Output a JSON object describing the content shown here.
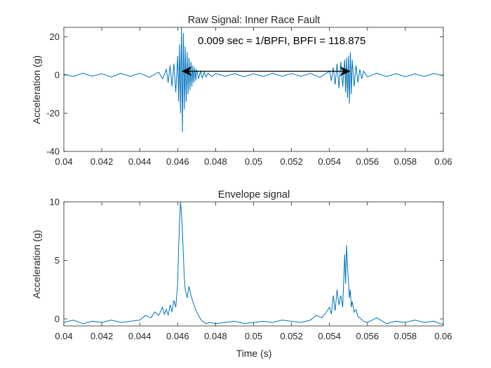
{
  "chart_data": [
    {
      "type": "line",
      "title": "Raw Signal: Inner Race Fault",
      "xlabel": "",
      "ylabel": "Acceleration (g)",
      "xlim": [
        0.04,
        0.06
      ],
      "ylim": [
        -40,
        25
      ],
      "xticks": [
        0.04,
        0.042,
        0.044,
        0.046,
        0.048,
        0.05,
        0.052,
        0.054,
        0.056,
        0.058,
        0.06
      ],
      "xticklabels": [
        "0.04",
        "0.042",
        "0.044",
        "0.046",
        "0.048",
        "0.05",
        "0.052",
        "0.054",
        "0.056",
        "0.058",
        "0.06"
      ],
      "yticks": [
        20,
        0,
        -20,
        -40
      ],
      "yticklabels": [
        "20",
        "0",
        "-20",
        "-40"
      ],
      "grid": false,
      "line_color": "#0072BD",
      "series": [
        {
          "x": [
            0.04,
            0.0405,
            0.041,
            0.0415,
            0.042,
            0.0425,
            0.043,
            0.0435,
            0.044,
            0.0445,
            0.045,
            0.0452,
            0.0454,
            0.0455,
            0.0456,
            0.0457,
            0.0458,
            0.0459,
            0.046,
            0.04605,
            0.0461,
            0.04615,
            0.0462,
            0.04625,
            0.0463,
            0.04635,
            0.0464,
            0.04645,
            0.0465,
            0.04655,
            0.0466,
            0.04665,
            0.0467,
            0.04675,
            0.0468,
            0.04685,
            0.0469,
            0.04695,
            0.047,
            0.0471,
            0.0472,
            0.0473,
            0.0474,
            0.0475,
            0.0476,
            0.0478,
            0.048,
            0.0485,
            0.049,
            0.0495,
            0.05,
            0.0505,
            0.051,
            0.0515,
            0.052,
            0.0525,
            0.053,
            0.0535,
            0.054,
            0.0541,
            0.0542,
            0.0543,
            0.0544,
            0.0545,
            0.0546,
            0.0547,
            0.0548,
            0.05485,
            0.0549,
            0.05495,
            0.055,
            0.05505,
            0.0551,
            0.05515,
            0.0552,
            0.0553,
            0.0554,
            0.0555,
            0.0556,
            0.0557,
            0.0558,
            0.056,
            0.0565,
            0.057,
            0.0575,
            0.058,
            0.0585,
            0.059,
            0.0595,
            0.06
          ],
          "y": [
            0.5,
            -0.8,
            1.0,
            -0.6,
            0.7,
            -1.0,
            0.9,
            -0.7,
            1.0,
            -1.2,
            1.5,
            -2,
            3,
            -4,
            5,
            -6,
            6,
            -9,
            10,
            -14,
            16,
            -20,
            25,
            -30,
            22,
            -18,
            15,
            -14,
            12,
            -10,
            9,
            -8,
            7,
            -6,
            5,
            -4,
            4,
            -3,
            3,
            -2,
            2,
            -1.5,
            1.5,
            -1,
            1,
            -0.8,
            0.8,
            -0.6,
            0.7,
            -0.9,
            0.6,
            -0.7,
            0.9,
            -0.6,
            0.8,
            -0.7,
            0.9,
            -1.2,
            2,
            -3,
            4,
            -5,
            6,
            -7,
            7,
            -6,
            8,
            -9,
            9,
            -12,
            10,
            -15,
            12,
            -10,
            8,
            -6,
            5,
            -4,
            3,
            -2,
            2,
            -1,
            1,
            -0.8,
            0.7,
            -0.9,
            0.6,
            -0.7,
            0.8,
            -0.3
          ]
        }
      ],
      "annotation": {
        "text": "0.009 sec ≈ 1/BPFI, BPFI = 118.875",
        "arrow_x": [
          0.0462,
          0.0551
        ],
        "arrow_y": 2
      }
    },
    {
      "type": "line",
      "title": "Envelope signal",
      "xlabel": "Time (s)",
      "ylabel": "Acceleration (g)",
      "xlim": [
        0.04,
        0.06
      ],
      "ylim": [
        -0.6,
        10
      ],
      "xticks": [
        0.04,
        0.042,
        0.044,
        0.046,
        0.048,
        0.05,
        0.052,
        0.054,
        0.056,
        0.058,
        0.06
      ],
      "xticklabels": [
        "0.04",
        "0.042",
        "0.044",
        "0.046",
        "0.048",
        "0.05",
        "0.052",
        "0.054",
        "0.056",
        "0.058",
        "0.06"
      ],
      "yticks": [
        10,
        5,
        0
      ],
      "yticklabels": [
        "10",
        "5",
        "0"
      ],
      "grid": false,
      "line_color": "#0072BD",
      "series": [
        {
          "x": [
            0.04,
            0.0405,
            0.041,
            0.0415,
            0.042,
            0.0425,
            0.043,
            0.0435,
            0.044,
            0.0443,
            0.0446,
            0.0448,
            0.045,
            0.0452,
            0.0453,
            0.0454,
            0.0455,
            0.0456,
            0.0457,
            0.0458,
            0.0459,
            0.046,
            0.04605,
            0.0461,
            0.04615,
            0.0462,
            0.04625,
            0.0463,
            0.04635,
            0.0464,
            0.0465,
            0.0466,
            0.0467,
            0.0468,
            0.0469,
            0.047,
            0.0471,
            0.0472,
            0.0473,
            0.0474,
            0.0475,
            0.0477,
            0.048,
            0.0485,
            0.049,
            0.0495,
            0.05,
            0.0505,
            0.051,
            0.0515,
            0.052,
            0.0525,
            0.053,
            0.0533,
            0.0536,
            0.0538,
            0.054,
            0.0541,
            0.0542,
            0.0543,
            0.0544,
            0.0545,
            0.0546,
            0.0547,
            0.0548,
            0.05485,
            0.0549,
            0.05495,
            0.055,
            0.05505,
            0.0551,
            0.05515,
            0.0552,
            0.0553,
            0.0554,
            0.0555,
            0.0556,
            0.0558,
            0.056,
            0.0565,
            0.057,
            0.0575,
            0.058,
            0.0585,
            0.059,
            0.0595,
            0.06
          ],
          "y": [
            -0.3,
            -0.1,
            -0.4,
            -0.2,
            -0.3,
            -0.1,
            -0.3,
            -0.2,
            -0.1,
            0.3,
            0.1,
            0.6,
            0.3,
            1.0,
            0.4,
            0.8,
            0.3,
            1.2,
            0.6,
            1.6,
            1.0,
            3.0,
            6.0,
            8.5,
            10.0,
            9.0,
            7.5,
            5.5,
            3.5,
            2.5,
            1.8,
            2.8,
            2.0,
            1.5,
            1.0,
            0.6,
            0.3,
            0.0,
            -0.2,
            -0.3,
            -0.4,
            -0.3,
            -0.4,
            -0.3,
            -0.2,
            -0.4,
            -0.3,
            -0.2,
            -0.3,
            -0.1,
            -0.2,
            -0.3,
            -0.1,
            0.3,
            0.1,
            0.5,
            1.0,
            0.4,
            2.0,
            0.7,
            2.5,
            1.2,
            2.0,
            1.0,
            5.5,
            3.0,
            6.3,
            4.5,
            3.2,
            1.8,
            2.5,
            1.0,
            1.5,
            0.6,
            0.8,
            0.2,
            0.1,
            -0.2,
            -0.3,
            0.1,
            -0.4,
            -0.2,
            -0.3,
            -0.1,
            -0.3,
            -0.2,
            -0.5
          ]
        }
      ]
    }
  ]
}
